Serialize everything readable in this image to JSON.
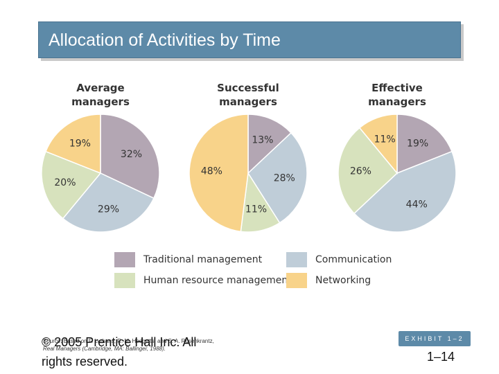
{
  "header": {
    "title": "Allocation of Activities by Time"
  },
  "chart_data": {
    "type": "pie",
    "categories": [
      "Traditional management",
      "Communication",
      "Human resource management",
      "Networking"
    ],
    "colors": [
      "#b3a6b3",
      "#bfcdd8",
      "#d7e2bd",
      "#f8d38a"
    ],
    "charts": [
      {
        "title": "Average managers",
        "title_line1": "Average",
        "title_line2": "managers",
        "values": [
          32,
          29,
          20,
          19
        ],
        "labels": [
          "32%",
          "29%",
          "20%",
          "19%"
        ]
      },
      {
        "title": "Successful managers",
        "title_line1": "Successful",
        "title_line2": "managers",
        "values": [
          13,
          28,
          11,
          48
        ],
        "labels": [
          "13%",
          "28%",
          "11%",
          "48%"
        ]
      },
      {
        "title": "Effective managers",
        "title_line1": "Effective",
        "title_line2": "managers",
        "values": [
          19,
          44,
          26,
          11
        ],
        "labels": [
          "19%",
          "44%",
          "26%",
          "11%"
        ]
      }
    ],
    "legend": {
      "items": [
        "Traditional management",
        "Communication",
        "Human resource management",
        "Networking"
      ],
      "placement": "bottom"
    }
  },
  "footer": {
    "copyright": "© 2005 Prentice Hall Inc. All rights reserved.",
    "source_line1": "Source: Based on F. Luthans, R. M. Hodgetts, and S. A. Rosenkrantz,",
    "source_line2": "Real Managers (Cambridge, MA: Ballinger, 1988).",
    "exhibit": "EXHIBIT 1–2",
    "page": "1–14"
  }
}
